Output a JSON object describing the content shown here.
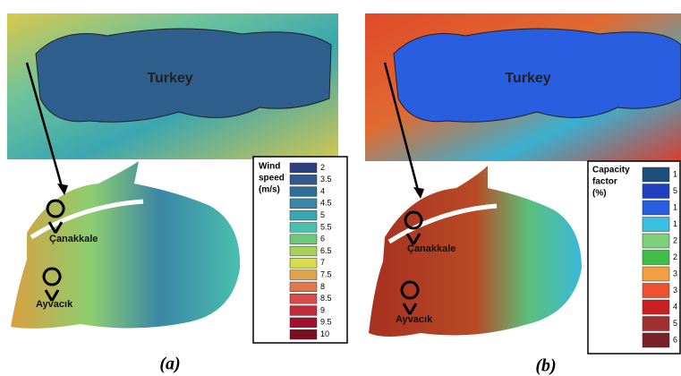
{
  "panels": [
    {
      "label": "(a)",
      "map_label": "Turkey",
      "places": [
        "Çanakkale",
        "Ayvacık"
      ],
      "legend": {
        "title": [
          "Wind",
          "speed",
          "(m/s)"
        ],
        "items": [
          {
            "label": "2",
            "color": "#2d3f7f"
          },
          {
            "label": "3.5",
            "color": "#34598f"
          },
          {
            "label": "4",
            "color": "#2f6d99"
          },
          {
            "label": "4.5",
            "color": "#3a86a6"
          },
          {
            "label": "5",
            "color": "#3aa6b0"
          },
          {
            "label": "5.5",
            "color": "#4bbfae"
          },
          {
            "label": "6",
            "color": "#6ec77a"
          },
          {
            "label": "6.5",
            "color": "#a6d25a"
          },
          {
            "label": "7",
            "color": "#d8db4a"
          },
          {
            "label": "7.5",
            "color": "#e0a24e"
          },
          {
            "label": "8",
            "color": "#e07a4e"
          },
          {
            "label": "8.5",
            "color": "#d94c4c"
          },
          {
            "label": "9",
            "color": "#c02a3a"
          },
          {
            "label": "9.5",
            "color": "#a01030"
          },
          {
            "label": "10",
            "color": "#7a1020"
          }
        ]
      }
    },
    {
      "label": "(b)",
      "map_label": "Turkey",
      "places": [
        "Çanakkale",
        "Ayvacık"
      ],
      "legend": {
        "title": [
          "Capacity",
          "factor",
          "(%)"
        ],
        "items": [
          {
            "label": "1",
            "color": "#1c4f78"
          },
          {
            "label": "5",
            "color": "#1f3fbf"
          },
          {
            "label": "1",
            "color": "#2a5ee0"
          },
          {
            "label": "1",
            "color": "#3ac0e0"
          },
          {
            "label": "2",
            "color": "#7fd07a"
          },
          {
            "label": "2",
            "color": "#3fbf4a"
          },
          {
            "label": "3",
            "color": "#f0a040"
          },
          {
            "label": "3",
            "color": "#f05030"
          },
          {
            "label": "4",
            "color": "#c82020"
          },
          {
            "label": "5",
            "color": "#a03030"
          },
          {
            "label": "6",
            "color": "#7a2028"
          }
        ]
      }
    }
  ]
}
